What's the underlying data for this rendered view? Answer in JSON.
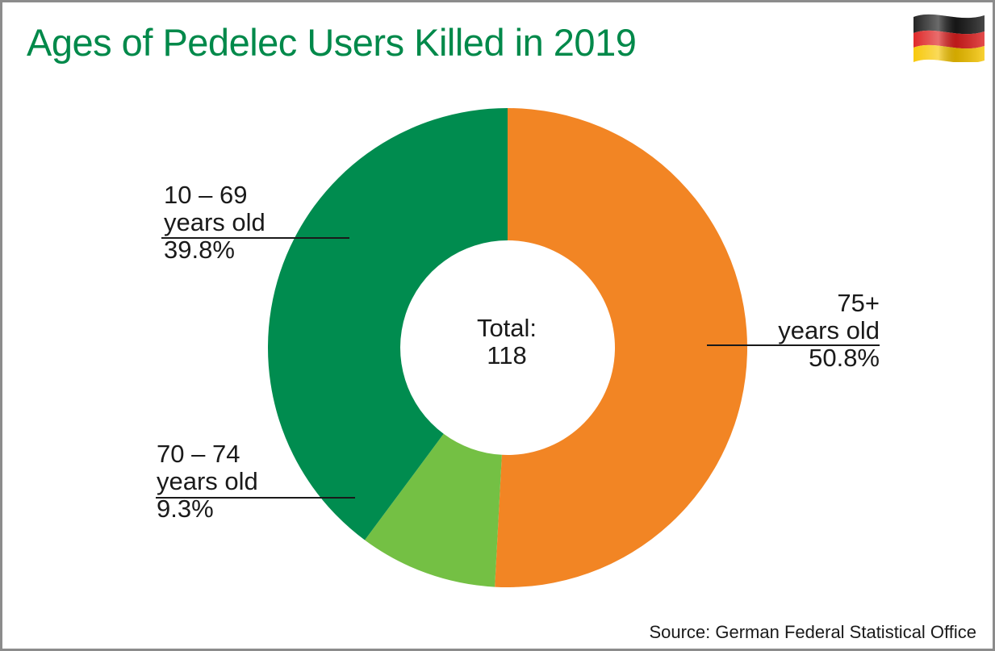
{
  "header": {
    "title": "Ages of Pedelec Users Killed in 2019",
    "flag_icon": "germany-flag-icon"
  },
  "center_label": {
    "line1": "Total:",
    "line2": "118"
  },
  "labels": {
    "older": {
      "line1": "75+",
      "line2": "years old",
      "pct": "50.8%"
    },
    "mid": {
      "line1": "70 – 74",
      "line2": "years old",
      "pct": "9.3%"
    },
    "young": {
      "line1": "10 – 69",
      "line2": "years old",
      "pct": "39.8%"
    }
  },
  "footer": {
    "source": "Source: German Federal Statistical Office"
  },
  "colors": {
    "title": "#00894a",
    "older": "#f28524",
    "mid": "#74c044",
    "young": "#008c4f"
  },
  "chart_data": {
    "type": "pie",
    "variant": "donut",
    "title": "Ages of Pedelec Users Killed in 2019",
    "total": 118,
    "categories": [
      "75+ years old",
      "70 – 74 years old",
      "10 – 69 years old"
    ],
    "values": [
      50.8,
      9.3,
      39.8
    ],
    "unit": "%",
    "colors": [
      "#f28524",
      "#74c044",
      "#008c4f"
    ],
    "source": "Source: German Federal Statistical Office"
  }
}
